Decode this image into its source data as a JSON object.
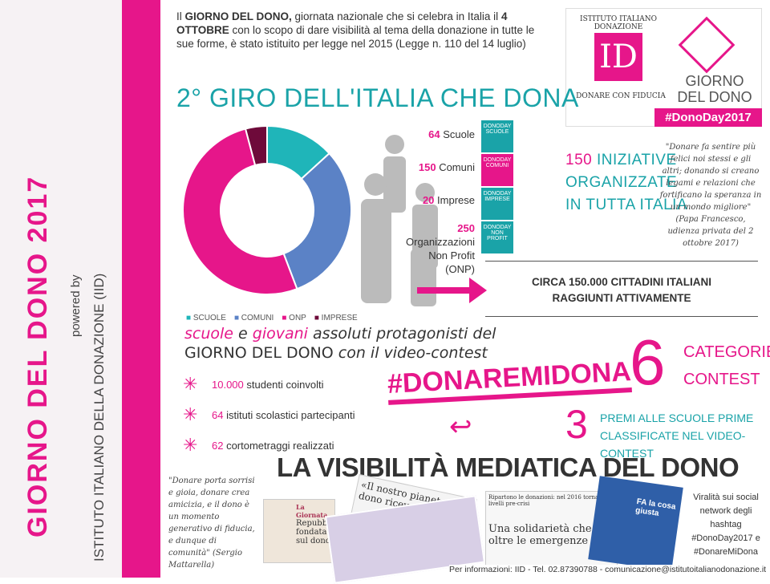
{
  "sidebar": {
    "title": "GIORNO DEL DONO 2017",
    "powered": "powered by",
    "org": "ISTITUTO ITALIANO DELLA DONAZIONE (IID)"
  },
  "intro": {
    "p1": "Il ",
    "b1": "GIORNO DEL DONO,",
    "p2": " giornata nazionale che si celebra in Italia il ",
    "b2": "4 OTTOBRE",
    "p3": " con lo scopo di dare visibilità al tema della donazione in tutte le sue forme, è stato istituito per legge nel 2015 (Legge n. 110 del 14 luglio)"
  },
  "logo": {
    "circle": "ISTITUTO ITALIANO DONAZIONE",
    "mark": "ID",
    "motto": "DONARE CON FIDUCIA",
    "brand1": "GIORNO",
    "brand2": "DEL DONO",
    "hashtag": "#DonoDay2017"
  },
  "heading": "2° GIRO DELL'ITALIA CHE DONA",
  "stats": [
    {
      "num": "64",
      "label": " Scuole",
      "icon": "DONODAY SCUOLE"
    },
    {
      "num": "150",
      "label": " Comuni",
      "icon": "DONODAY COMUNI"
    },
    {
      "num": "20",
      "label": " Imprese",
      "icon": "DONODAY IMPRESE"
    },
    {
      "num": "250",
      "label": " Organizzazioni Non Profit (ONP)",
      "icon": "DONODAY NON PROFIT"
    }
  ],
  "initiatives": {
    "num": "150",
    "l1": " INIZIATIVE",
    "l2": "ORGANIZZATE",
    "l3": "IN TUTTA ITALIA"
  },
  "quote1": "\"Donare fa sentire più felici noi stessi e gli altri; donando si creano legami e relazioni che fortificano la speranza in un mondo migliore\" (Papa Francesco, udienza privata del 2 ottobre 2017)",
  "citizens": {
    "l1": "CIRCA 150.000 CITTADINI ITALIANI",
    "l2": "RAGGIUNTI ATTIVAMENTE"
  },
  "chart_data": {
    "type": "pie",
    "donut": true,
    "categories": [
      "SCUOLE",
      "COMUNI",
      "ONP",
      "IMPRESE"
    ],
    "values": [
      64,
      150,
      250,
      20
    ],
    "colors": [
      "#1fb5b9",
      "#5b82c6",
      "#e6168a",
      "#6e0a3a"
    ],
    "legend": "bottom"
  },
  "schools": {
    "w1": "scuole",
    "w2": " e ",
    "w3": "giovani",
    "w4": " assoluti protagonisti del",
    "line2a": "GIORNO DEL DONO",
    "line2b": " con il video-contest"
  },
  "bullets": [
    {
      "num": "10.000",
      "text": " studenti coinvolti"
    },
    {
      "num": "64",
      "text": " istituti scolastici partecipanti"
    },
    {
      "num": "62",
      "text": " cortometraggi realizzati"
    }
  ],
  "hashtag": "#DONAREMIDONA",
  "contest": {
    "num": "6",
    "l1": "CATEGORIE",
    "l2": "CONTEST"
  },
  "prizes": {
    "num": "3",
    "l1": "PREMI ALLE SCUOLE PRIME",
    "l2": "CLASSIFICATE NEL VIDEO-CONTEST"
  },
  "media_title": "LA VISIBILITÀ MEDIATICA DEL DONO",
  "quote2": "\"Donare porta sorrisi e gioia, donare crea amicizia, e il dono è un momento generativo di fiducia, e dunque di comunità\" (Sergio Mattarella)",
  "clips": {
    "c1a": "La Giornata",
    "c1b": "Repubblica fondata sul dono",
    "c2": "«Il nostro pianeta dono ricevuto da con...",
    "c3a": "Ripartono le donazioni: nel 2016 tornate ai livelli pre-crisi",
    "c3b": "Una solidarietà che va oltre le emergenze",
    "c4": "FA la cosa giusta"
  },
  "viral": "Viralità sui social network degli hashtag #DonoDay2017 e #DonareMiDona",
  "footer": "Per informazioni: IID - Tel. 02.87390788 - comunicazione@istitutoitalianodonazione.it"
}
